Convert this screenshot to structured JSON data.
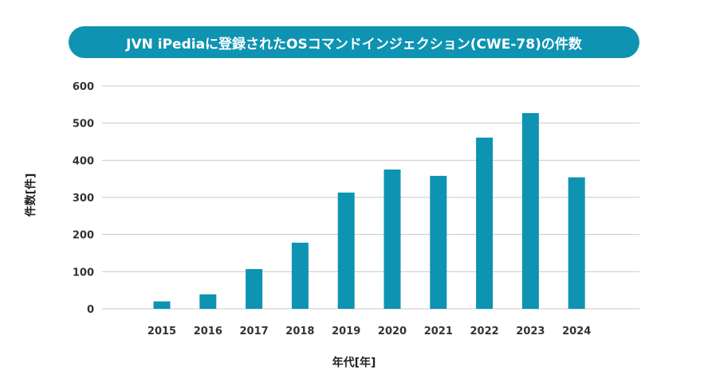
{
  "chart_data": {
    "type": "bar",
    "title": "JVN iPediaに登録されたOSコマンドインジェクション(CWE-78)の件数",
    "xlabel": "年代[年]",
    "ylabel": "件数[件]",
    "categories": [
      "2015",
      "2016",
      "2017",
      "2018",
      "2019",
      "2020",
      "2021",
      "2022",
      "2023",
      "2024"
    ],
    "values": [
      20,
      39,
      107,
      178,
      313,
      375,
      358,
      461,
      527,
      354
    ],
    "ylim": [
      0,
      600
    ],
    "yticks": [
      "0",
      "100",
      "200",
      "300",
      "400",
      "500",
      "600"
    ],
    "grid": true,
    "bar_color": "#0e93b2",
    "title_bg_color": "#0e93b2"
  }
}
